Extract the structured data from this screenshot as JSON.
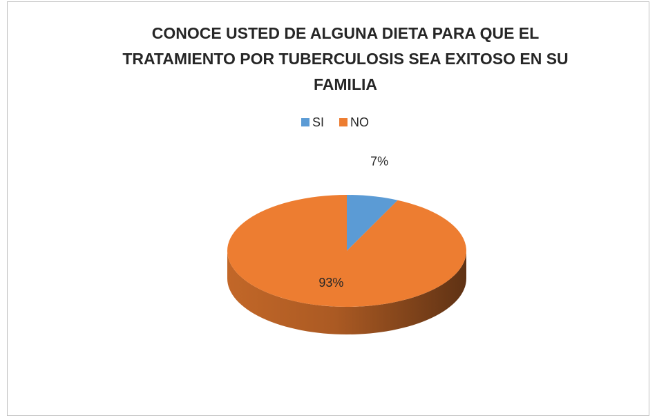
{
  "chart_data": {
    "type": "pie",
    "title": "CONOCE USTED DE ALGUNA DIETA PARA QUE EL TRATAMIENTO POR TUBERCULOSIS SEA EXITOSO EN SU FAMILIA",
    "categories": [
      "SI",
      "NO"
    ],
    "values": [
      7,
      93
    ],
    "value_labels": [
      "7%",
      "93%"
    ],
    "colors": [
      "#5b9bd5",
      "#ed7d31"
    ],
    "legend": "top",
    "style": "3d"
  }
}
